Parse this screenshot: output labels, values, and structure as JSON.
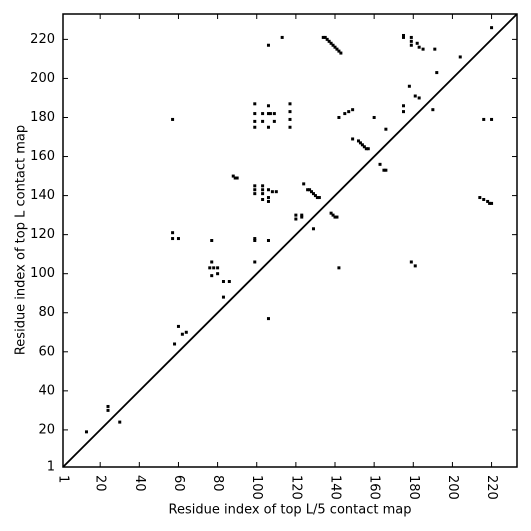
{
  "chart_data": {
    "type": "scatter",
    "xlabel": "Residue index of top L/5 contact map",
    "ylabel": "Residue index of top L contact map",
    "color": "#000000",
    "xlim": [
      1,
      233
    ],
    "ylim": [
      1,
      233
    ],
    "xticks": [
      1,
      20,
      40,
      60,
      80,
      100,
      120,
      140,
      160,
      180,
      200,
      220
    ],
    "yticks": [
      1,
      20,
      40,
      60,
      80,
      100,
      120,
      140,
      160,
      180,
      200,
      220
    ],
    "x": [
      13,
      24,
      24,
      30,
      57,
      57,
      57,
      60,
      58,
      60,
      62,
      64,
      77,
      77,
      76,
      78,
      77,
      80,
      80,
      83,
      86,
      83,
      88,
      89,
      90,
      99,
      99,
      99,
      99,
      99,
      99,
      99,
      103,
      103,
      103,
      103,
      106,
      106,
      106,
      108,
      110,
      99,
      99,
      99,
      103,
      103,
      106,
      106,
      106,
      107,
      109,
      109,
      106,
      113,
      106,
      106,
      117,
      117,
      117,
      117,
      120,
      120,
      123,
      123,
      124,
      126,
      127,
      128,
      129,
      130,
      131,
      132,
      129,
      134,
      135,
      136,
      137,
      138,
      139,
      140,
      141,
      142,
      143,
      138,
      139,
      140,
      141,
      142,
      142,
      145,
      147,
      149,
      149,
      152,
      153,
      154,
      155,
      156,
      157,
      160,
      163,
      165,
      166,
      166,
      175,
      175,
      175,
      175,
      178,
      179,
      179,
      179,
      179,
      181,
      181,
      183,
      182,
      183,
      185,
      190,
      191,
      192,
      204,
      214,
      216,
      218,
      219,
      220,
      216,
      220,
      220
    ],
    "values": [
      19,
      32,
      30,
      24,
      179,
      121,
      118,
      118,
      64,
      73,
      69,
      70,
      117,
      106,
      103,
      103,
      99,
      103,
      100,
      96,
      96,
      88,
      150,
      149,
      149,
      187,
      182,
      178,
      175,
      145,
      143,
      141,
      145,
      143,
      141,
      138,
      143,
      139,
      137,
      142,
      142,
      118,
      117,
      106,
      182,
      178,
      186,
      182,
      175,
      182,
      182,
      178,
      217,
      221,
      117,
      77,
      187,
      183,
      179,
      175,
      130,
      128,
      129,
      130,
      146,
      143,
      143,
      142,
      141,
      140,
      139,
      139,
      123,
      221,
      221,
      220,
      219,
      218,
      217,
      216,
      215,
      214,
      213,
      131,
      130,
      129,
      129,
      103,
      180,
      182,
      183,
      184,
      169,
      168,
      167,
      166,
      165,
      164,
      164,
      180,
      156,
      153,
      153,
      174,
      186,
      183,
      222,
      221,
      196,
      221,
      219,
      217,
      106,
      104,
      191,
      190,
      218,
      216,
      215,
      184,
      215,
      203,
      211,
      139,
      138,
      137,
      136,
      136,
      179,
      179,
      226
    ]
  }
}
